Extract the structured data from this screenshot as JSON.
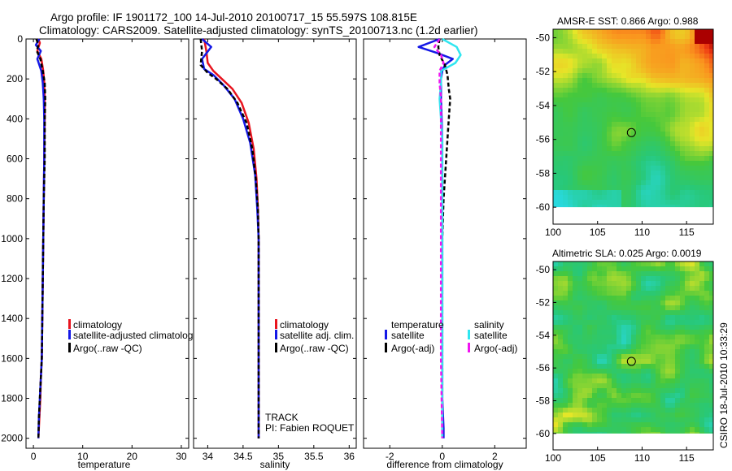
{
  "title": {
    "line1": "Argo profile: IF 1901172_100 14-Jul-2010 20100717_15 55.597S 108.815E",
    "line2": "Climatology: CARS2009. Satellite-adjusted climatology: synTS_20100713.nc (1.2d earlier)"
  },
  "footer": "CSIRO 18-Jul-2010 10:33:29",
  "colors": {
    "climatology": "#e8141e",
    "satellite": "#1418e6",
    "argo": "#000000",
    "sal_satellite": "#30e6f0",
    "sal_argo": "#f014f0"
  },
  "chart_data": [
    {
      "type": "line",
      "name": "temperature-profile",
      "xlabel": "temperature",
      "ylabel": "",
      "xlim": [
        -1.5,
        31.5
      ],
      "ylim": [
        2050,
        0
      ],
      "xticks": [
        0,
        10,
        20,
        30
      ],
      "yticks": [
        0,
        200,
        400,
        600,
        800,
        1000,
        1200,
        1400,
        1600,
        1800,
        2000
      ],
      "legend": [
        "climatology",
        "satellite-adjusted climatolog",
        "Argo(..raw -QC)"
      ],
      "series": [
        {
          "name": "climatology",
          "x": [
            1.0,
            1.3,
            0.8,
            1.6,
            2.0,
            2.2,
            2.3,
            2.3,
            2.2,
            2.1,
            2.0,
            1.9,
            1.8,
            1.7,
            1.5,
            1.4,
            1.2,
            1.0
          ],
          "y": [
            0,
            20,
            60,
            100,
            160,
            220,
            300,
            400,
            600,
            800,
            1000,
            1200,
            1400,
            1600,
            1700,
            1800,
            1900,
            2000
          ]
        },
        {
          "name": "satellite",
          "x": [
            1.2,
            0.5,
            1.5,
            0.8,
            1.6,
            1.9,
            2.1,
            2.2,
            2.2,
            2.1,
            2.0,
            1.9,
            1.8,
            1.7,
            1.5,
            1.3,
            1.1,
            1.0
          ],
          "y": [
            0,
            30,
            60,
            100,
            160,
            220,
            300,
            400,
            600,
            800,
            1000,
            1200,
            1400,
            1600,
            1700,
            1800,
            1900,
            2000
          ]
        },
        {
          "name": "argo",
          "x": [
            0.6,
            1.0,
            0.7,
            1.4,
            1.9,
            2.3,
            2.4,
            2.3,
            2.3,
            2.1,
            2.0,
            1.9,
            1.8,
            1.7,
            1.5,
            1.3,
            1.1,
            1.0
          ],
          "y": [
            0,
            30,
            60,
            100,
            160,
            220,
            300,
            400,
            600,
            800,
            1000,
            1200,
            1400,
            1600,
            1700,
            1800,
            1900,
            2000
          ]
        }
      ]
    },
    {
      "type": "line",
      "name": "salinity-profile",
      "xlabel": "salinity",
      "ylabel": "",
      "xlim": [
        33.8,
        36.1
      ],
      "ylim": [
        2050,
        0
      ],
      "xticks": [
        34,
        34.5,
        35,
        35.5,
        36
      ],
      "legend": [
        "climatology",
        "satellite adj. clim.",
        "Argo(..raw -QC)"
      ],
      "annotations": [
        "TRACK",
        "PI: Fabien ROQUET"
      ],
      "series": [
        {
          "name": "climatology",
          "x": [
            33.95,
            33.98,
            34.0,
            34.08,
            34.2,
            34.35,
            34.48,
            34.58,
            34.65,
            34.69,
            34.71,
            34.72,
            34.72,
            34.72,
            34.72,
            34.72
          ],
          "y": [
            0,
            60,
            120,
            160,
            200,
            250,
            320,
            420,
            550,
            700,
            850,
            1000,
            1200,
            1500,
            1800,
            2000
          ]
        },
        {
          "name": "satellite",
          "x": [
            33.92,
            34.05,
            33.92,
            33.95,
            34.08,
            34.22,
            34.38,
            34.5,
            34.6,
            34.67,
            34.7,
            34.72,
            34.72,
            34.72,
            34.72,
            34.72
          ],
          "y": [
            0,
            40,
            100,
            150,
            180,
            230,
            300,
            400,
            520,
            680,
            850,
            1000,
            1200,
            1500,
            1800,
            2000
          ]
        },
        {
          "name": "argo",
          "x": [
            33.9,
            33.92,
            33.9,
            34.0,
            34.12,
            34.28,
            34.42,
            34.55,
            34.63,
            34.68,
            34.71,
            34.72,
            34.72,
            34.72,
            34.72,
            34.72
          ],
          "y": [
            0,
            60,
            130,
            170,
            200,
            250,
            320,
            420,
            550,
            700,
            850,
            1000,
            1200,
            1500,
            1800,
            2000
          ]
        }
      ]
    },
    {
      "type": "line",
      "name": "difference-profile",
      "xlabel": "difference from climatology",
      "ylabel": "",
      "xlim": [
        -3.0,
        3.2
      ],
      "ylim": [
        2050,
        0
      ],
      "xticks": [
        -2,
        0,
        2
      ],
      "legend_headers": [
        "temperature",
        "salinity"
      ],
      "legend": [
        "satellite",
        "Argo(-adj)",
        "satellite",
        "Argo(-adj)"
      ],
      "series": [
        {
          "name": "temperature satellite",
          "x": [
            -0.1,
            -0.9,
            -0.2,
            0.4,
            0.1,
            0.0,
            -0.05,
            -0.05,
            0.0,
            0.0,
            0.0,
            0.0,
            0.0,
            0.0,
            0.05,
            0.05
          ],
          "y": [
            0,
            40,
            70,
            100,
            130,
            160,
            200,
            300,
            500,
            700,
            900,
            1200,
            1500,
            1800,
            1950,
            2000
          ]
        },
        {
          "name": "temperature argo",
          "x": [
            -0.1,
            -0.15,
            -0.1,
            0.1,
            0.2,
            0.25,
            0.3,
            0.25,
            0.2,
            0.15,
            0.1,
            0.05,
            0.0,
            0.0,
            0.0
          ],
          "y": [
            0,
            40,
            80,
            130,
            180,
            250,
            300,
            400,
            500,
            600,
            700,
            800,
            1000,
            1500,
            2000
          ]
        },
        {
          "name": "salinity satellite",
          "x": [
            0.0,
            0.55,
            0.7,
            0.5,
            -0.05,
            -0.05,
            -0.1,
            -0.05,
            0.0,
            0.0,
            0.0,
            0.0,
            0.0,
            0.0,
            0.0,
            0.0
          ],
          "y": [
            0,
            40,
            80,
            120,
            160,
            220,
            300,
            400,
            500,
            600,
            700,
            800,
            1000,
            1500,
            1800,
            2000
          ]
        },
        {
          "name": "salinity argo",
          "x": [
            -0.1,
            -0.3,
            -0.05,
            0.05,
            -0.1,
            -0.1,
            -0.05,
            -0.05,
            -0.05,
            -0.05,
            -0.05,
            -0.05,
            -0.05,
            -0.05,
            -0.05,
            0.0
          ],
          "y": [
            0,
            40,
            80,
            120,
            160,
            220,
            300,
            400,
            500,
            600,
            700,
            800,
            1000,
            1300,
            1600,
            2000
          ]
        }
      ]
    },
    {
      "type": "heatmap",
      "name": "sst-map",
      "title": "AMSR-E SST: 0.866 Argo: 0.988",
      "xlim": [
        100,
        118
      ],
      "ylim": [
        -61,
        -49.5
      ],
      "xticks": [
        100,
        105,
        110,
        115
      ],
      "yticks": [
        -50,
        -52,
        -54,
        -56,
        -58,
        -60
      ],
      "data_extent_y": [
        -60,
        -49.5
      ],
      "marker": {
        "lon": 108.8,
        "lat": -55.6
      }
    },
    {
      "type": "heatmap",
      "name": "sla-map",
      "title": "Altimetric SLA: 0.025 Argo: 0.0019",
      "xlim": [
        100,
        118
      ],
      "ylim": [
        -61,
        -49.5
      ],
      "xticks": [
        100,
        105,
        110,
        115
      ],
      "yticks": [
        -50,
        -52,
        -54,
        -56,
        -58,
        -60
      ],
      "data_extent_y": [
        -60,
        -49.5
      ],
      "marker": {
        "lon": 108.8,
        "lat": -55.6
      }
    }
  ]
}
